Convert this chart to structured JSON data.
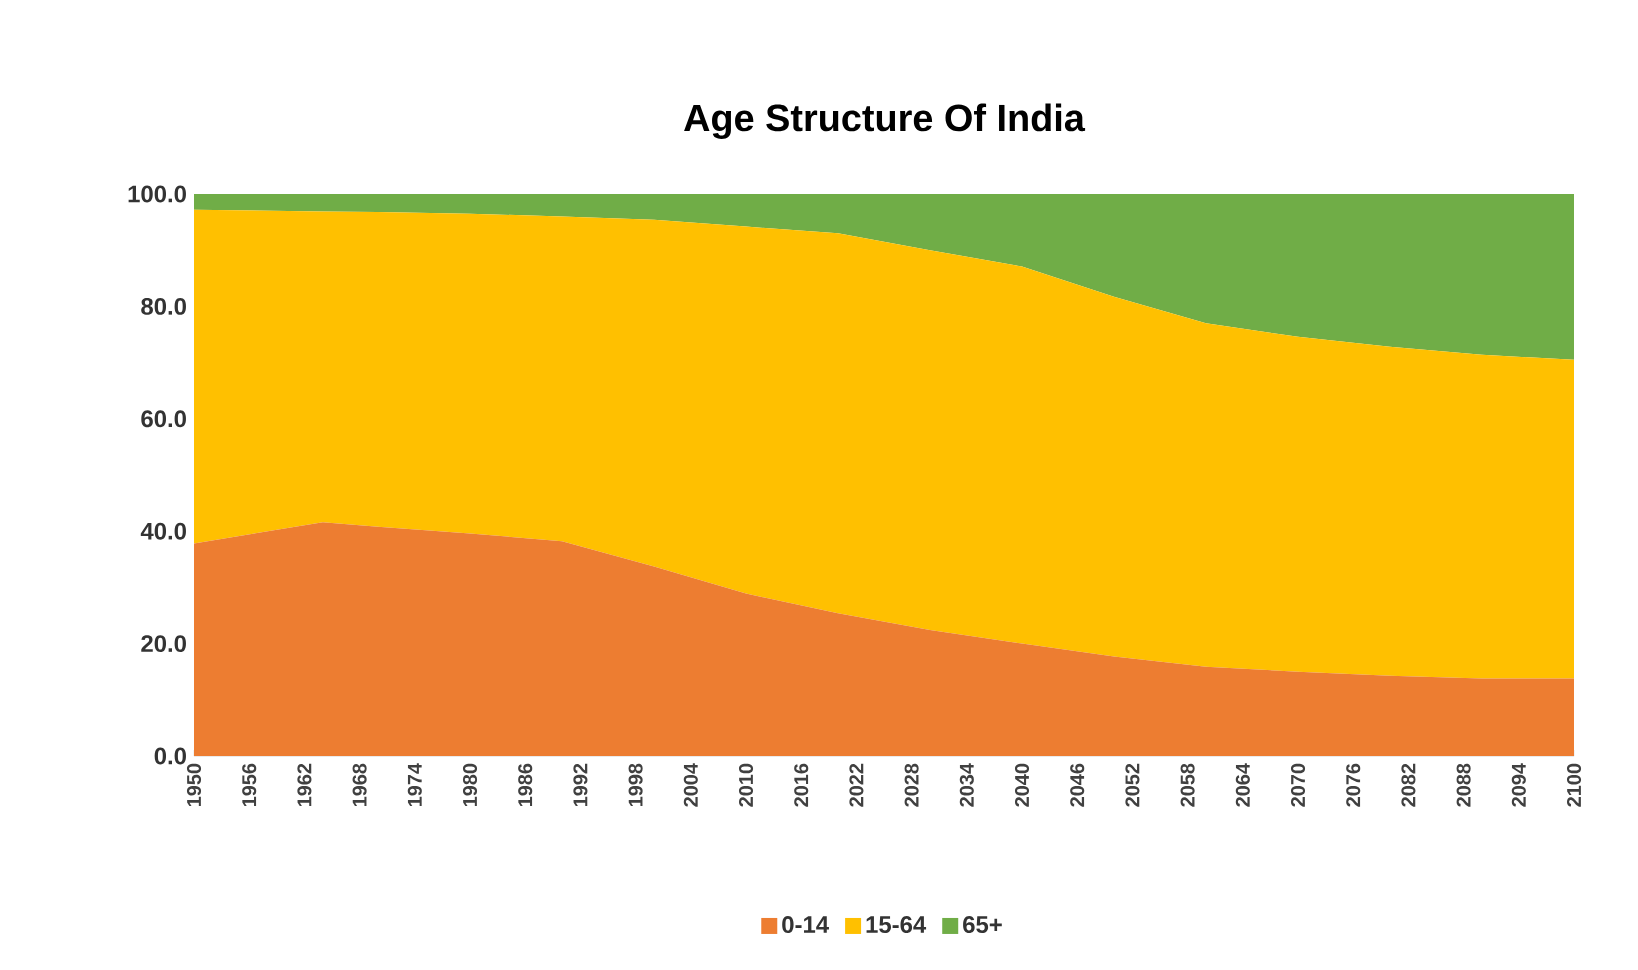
{
  "chart_data": {
    "type": "area",
    "title": "Age Structure Of India",
    "stacked": true,
    "x": [
      1950,
      1964,
      1970,
      1980,
      1990,
      2000,
      2010,
      2020,
      2030,
      2040,
      2050,
      2060,
      2070,
      2080,
      2090,
      2100
    ],
    "series": [
      {
        "name": "0-14",
        "color": "#ed7d31",
        "values": [
          37.8,
          41.6,
          40.8,
          39.6,
          38.2,
          33.7,
          28.9,
          25.4,
          22.4,
          20.0,
          17.7,
          15.9,
          15.0,
          14.3,
          13.8,
          13.8
        ]
      },
      {
        "name": "15-64",
        "color": "#ffc000",
        "values": [
          59.4,
          55.3,
          56.0,
          56.9,
          57.8,
          61.7,
          65.3,
          67.6,
          67.6,
          67.1,
          64.0,
          61.1,
          59.6,
          58.5,
          57.6,
          56.7
        ]
      },
      {
        "name": "65+",
        "color": "#70ad47",
        "values": [
          2.8,
          3.1,
          3.2,
          3.5,
          4.0,
          4.6,
          5.8,
          7.0,
          10.0,
          12.9,
          18.3,
          23.0,
          25.4,
          27.2,
          28.6,
          29.5
        ]
      }
    ],
    "xlim": [
      1950,
      2100
    ],
    "xticks": [
      1950,
      1956,
      1962,
      1968,
      1974,
      1980,
      1986,
      1992,
      1998,
      2004,
      2010,
      2016,
      2022,
      2028,
      2034,
      2040,
      2046,
      2052,
      2058,
      2064,
      2070,
      2076,
      2082,
      2088,
      2094,
      2100
    ],
    "ylim": [
      0,
      100
    ],
    "yticks": [
      {
        "value": 0,
        "label": "0.0"
      },
      {
        "value": 20,
        "label": "20.0"
      },
      {
        "value": 40,
        "label": "40.0"
      },
      {
        "value": 60,
        "label": "60.0"
      },
      {
        "value": 80,
        "label": "80.0"
      },
      {
        "value": 100,
        "label": "100.0"
      }
    ],
    "legend": "bottom",
    "grid": false
  }
}
